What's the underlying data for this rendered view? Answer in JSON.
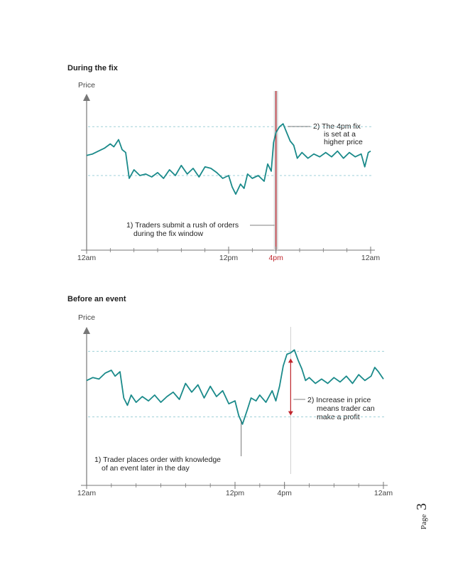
{
  "page": {
    "label": "Page",
    "number": "3"
  },
  "colors": {
    "line": "#1a8a8a",
    "axis": "#777777",
    "dashed": "#9fd0d8",
    "highlight": "#c0262d"
  },
  "chart_data": [
    {
      "type": "line",
      "title": "During the fix",
      "ylabel": "Price",
      "xlabel": "",
      "x_ticks": [
        "12am",
        "12pm",
        "4pm",
        "12am"
      ],
      "x_tick_hours": [
        0,
        12,
        16,
        24
      ],
      "highlight_tick": "4pm",
      "xlim": [
        0,
        24
      ],
      "ylim": [
        0,
        100
      ],
      "reference_levels": [
        86,
        52
      ],
      "fix_window_hour": 16,
      "annotations": [
        {
          "id": "a1",
          "lines": [
            "1) Traders submit a rush of orders",
            "during the fix window"
          ]
        },
        {
          "id": "a2",
          "lines": [
            "2) The 4pm fix",
            "is set at a",
            "higher price"
          ]
        }
      ],
      "series": [
        {
          "values": [
            [
              0,
              66
            ],
            [
              0.5,
              67
            ],
            [
              1,
              69
            ],
            [
              1.5,
              71
            ],
            [
              2,
              74
            ],
            [
              2.3,
              72
            ],
            [
              2.7,
              77
            ],
            [
              3,
              70
            ],
            [
              3.3,
              68
            ],
            [
              3.6,
              50
            ],
            [
              4,
              56
            ],
            [
              4.5,
              52
            ],
            [
              5,
              53
            ],
            [
              5.5,
              51
            ],
            [
              6,
              54
            ],
            [
              6.5,
              50
            ],
            [
              7,
              56
            ],
            [
              7.5,
              52
            ],
            [
              8,
              59
            ],
            [
              8.5,
              53
            ],
            [
              9,
              57
            ],
            [
              9.5,
              51
            ],
            [
              10,
              58
            ],
            [
              10.5,
              57
            ],
            [
              11,
              54
            ],
            [
              11.5,
              50
            ],
            [
              12,
              52
            ],
            [
              12.3,
              44
            ],
            [
              12.6,
              39
            ],
            [
              13,
              46
            ],
            [
              13.3,
              43
            ],
            [
              13.6,
              53
            ],
            [
              14,
              50
            ],
            [
              14.5,
              52
            ],
            [
              15,
              48
            ],
            [
              15.3,
              60
            ],
            [
              15.6,
              55
            ],
            [
              15.8,
              75
            ],
            [
              16,
              82
            ],
            [
              16.3,
              86
            ],
            [
              16.6,
              88
            ],
            [
              16.9,
              82
            ],
            [
              17.2,
              76
            ],
            [
              17.5,
              73
            ],
            [
              17.8,
              64
            ],
            [
              18.2,
              68
            ],
            [
              18.7,
              64
            ],
            [
              19.2,
              67
            ],
            [
              19.7,
              65
            ],
            [
              20.2,
              68
            ],
            [
              20.7,
              65
            ],
            [
              21.2,
              69
            ],
            [
              21.7,
              64
            ],
            [
              22.2,
              68
            ],
            [
              22.7,
              65
            ],
            [
              23.2,
              67
            ],
            [
              23.5,
              58
            ],
            [
              23.8,
              68
            ],
            [
              24,
              69
            ]
          ]
        }
      ]
    },
    {
      "type": "line",
      "title": "Before an event",
      "ylabel": "Price",
      "xlabel": "",
      "x_ticks": [
        "12am",
        "12pm",
        "4pm",
        "12am"
      ],
      "x_tick_hours": [
        0,
        12,
        16,
        24
      ],
      "xlim": [
        0,
        24
      ],
      "ylim": [
        0,
        100
      ],
      "reference_levels": [
        92,
        47
      ],
      "event_hour": 16.5,
      "order_hour": 12.5,
      "annotations": [
        {
          "id": "a1",
          "lines": [
            "1) Trader places order with knowledge",
            "of an event later in the day"
          ]
        },
        {
          "id": "a2",
          "lines": [
            "2) Increase in price",
            "means trader can",
            "make a profit"
          ]
        }
      ],
      "series": [
        {
          "values": [
            [
              0,
              72
            ],
            [
              0.5,
              74
            ],
            [
              1,
              73
            ],
            [
              1.5,
              77
            ],
            [
              2,
              79
            ],
            [
              2.3,
              75
            ],
            [
              2.7,
              78
            ],
            [
              3,
              60
            ],
            [
              3.3,
              55
            ],
            [
              3.6,
              62
            ],
            [
              4,
              57
            ],
            [
              4.5,
              61
            ],
            [
              5,
              58
            ],
            [
              5.5,
              62
            ],
            [
              6,
              57
            ],
            [
              6.5,
              61
            ],
            [
              7,
              64
            ],
            [
              7.5,
              59
            ],
            [
              8,
              70
            ],
            [
              8.5,
              64
            ],
            [
              9,
              69
            ],
            [
              9.5,
              60
            ],
            [
              10,
              68
            ],
            [
              10.5,
              61
            ],
            [
              11,
              65
            ],
            [
              11.5,
              56
            ],
            [
              12,
              58
            ],
            [
              12.3,
              48
            ],
            [
              12.6,
              42
            ],
            [
              13,
              52
            ],
            [
              13.3,
              60
            ],
            [
              13.7,
              58
            ],
            [
              14,
              62
            ],
            [
              14.5,
              57
            ],
            [
              15,
              65
            ],
            [
              15.3,
              58
            ],
            [
              15.6,
              68
            ],
            [
              15.9,
              82
            ],
            [
              16.2,
              90
            ],
            [
              16.5,
              91
            ],
            [
              16.8,
              93
            ],
            [
              17.1,
              86
            ],
            [
              17.4,
              80
            ],
            [
              17.7,
              72
            ],
            [
              18,
              74
            ],
            [
              18.5,
              70
            ],
            [
              19,
              73
            ],
            [
              19.5,
              70
            ],
            [
              20,
              74
            ],
            [
              20.5,
              71
            ],
            [
              21,
              75
            ],
            [
              21.5,
              70
            ],
            [
              22,
              76
            ],
            [
              22.5,
              72
            ],
            [
              23,
              75
            ],
            [
              23.3,
              81
            ],
            [
              23.6,
              78
            ],
            [
              24,
              73
            ]
          ]
        }
      ]
    }
  ]
}
